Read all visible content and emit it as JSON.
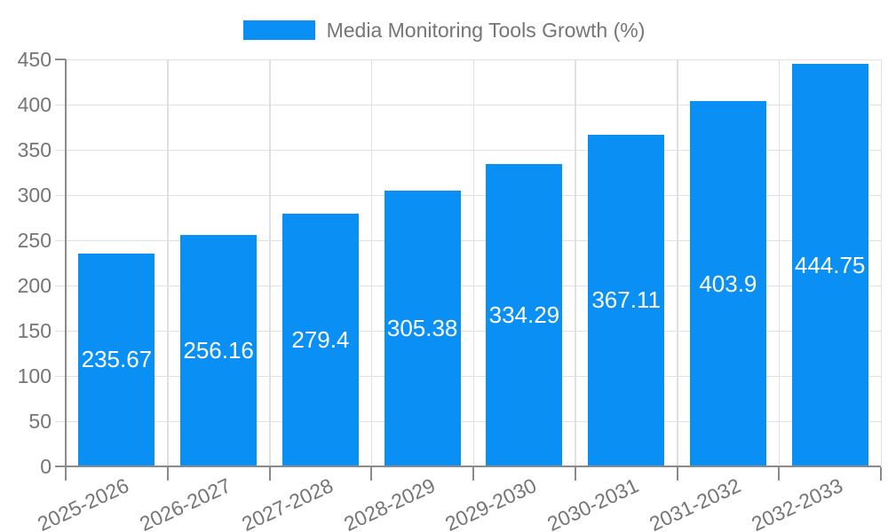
{
  "chart_data": {
    "type": "bar",
    "title": "Media Monitoring Tools Growth (%)",
    "legend_label": "Media Monitoring Tools Growth (%)",
    "legend_position": "top",
    "categories": [
      "2025-2026",
      "2026-2027",
      "2027-2028",
      "2028-2029",
      "2029-2030",
      "2030-2031",
      "2031-2032",
      "2032-2033"
    ],
    "values": [
      235.67,
      256.16,
      279.4,
      305.38,
      334.29,
      367.11,
      403.9,
      444.75
    ],
    "value_labels": [
      "235.67",
      "256.16",
      "279.4",
      "305.38",
      "334.29",
      "367.11",
      "403.9",
      "444.75"
    ],
    "xlabel": "",
    "ylabel": "",
    "ylim": [
      0,
      450
    ],
    "yticks": [
      0,
      50,
      100,
      150,
      200,
      250,
      300,
      350,
      400,
      450
    ],
    "ytick_labels": [
      "0",
      "50",
      "100",
      "150",
      "200",
      "250",
      "300",
      "350",
      "400",
      "450"
    ],
    "grid": true,
    "colors": {
      "bar": "#0a90f5",
      "bar_label": "#ffffff",
      "axis_text": "#757575",
      "grid": "#e0e0e0",
      "axis_line": "#8a8a8a",
      "background": "#ffffff"
    }
  }
}
